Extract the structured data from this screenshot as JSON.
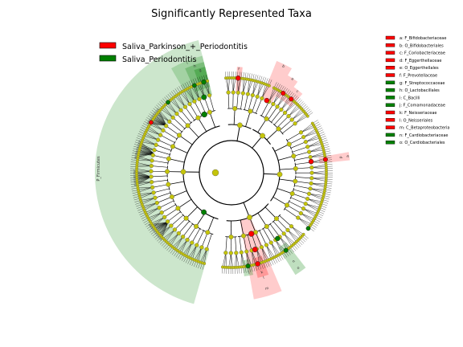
{
  "title": "Significantly Represented Taxa",
  "colors": {
    "red": "#ff0000",
    "green": "#008000",
    "node": "#c4c40a",
    "red_shade": "#ff0000",
    "green_shade": "#008000"
  },
  "legend": [
    {
      "label": "Saliva_Parkinson_+_Periodontitis",
      "color": "#ff0000"
    },
    {
      "label": "Saliva_Periodontitis",
      "color": "#008000"
    }
  ],
  "key": [
    {
      "text": "a: F_Bifidobacteriaceae",
      "color": "#ff0000"
    },
    {
      "text": "b: O_Bifidobacteriales",
      "color": "#ff0000"
    },
    {
      "text": "c: F_Coriobacteriaceae",
      "color": "#ff0000"
    },
    {
      "text": "d: F_Eggerthellaceae",
      "color": "#ff0000"
    },
    {
      "text": "e: O_Eggerthellales",
      "color": "#ff0000"
    },
    {
      "text": "f: F_Prevotellaceae",
      "color": "#ff0000"
    },
    {
      "text": "g: F_Streptococcaceae",
      "color": "#008000"
    },
    {
      "text": "h: O_Lactobacillales",
      "color": "#008000"
    },
    {
      "text": "i: C_Bacilli",
      "color": "#008000"
    },
    {
      "text": "j: F_Comamonadaceae",
      "color": "#008000"
    },
    {
      "text": "k: F_Neisseriaceae",
      "color": "#ff0000"
    },
    {
      "text": "l: O_Neisseriales",
      "color": "#ff0000"
    },
    {
      "text": "m: C_Betaproteobacteria",
      "color": "#ff0000"
    },
    {
      "text": "n: F_Cardiobacteriaceae",
      "color": "#008000"
    },
    {
      "text": "o: O_Cardiobacteriales",
      "color": "#008000"
    }
  ],
  "phylum_label": "P_Firmicutes",
  "clade_labels": [
    "a",
    "b",
    "c",
    "d",
    "e",
    "f",
    "g",
    "h",
    "i",
    "j",
    "k",
    "l",
    "m",
    "n",
    "o"
  ]
}
